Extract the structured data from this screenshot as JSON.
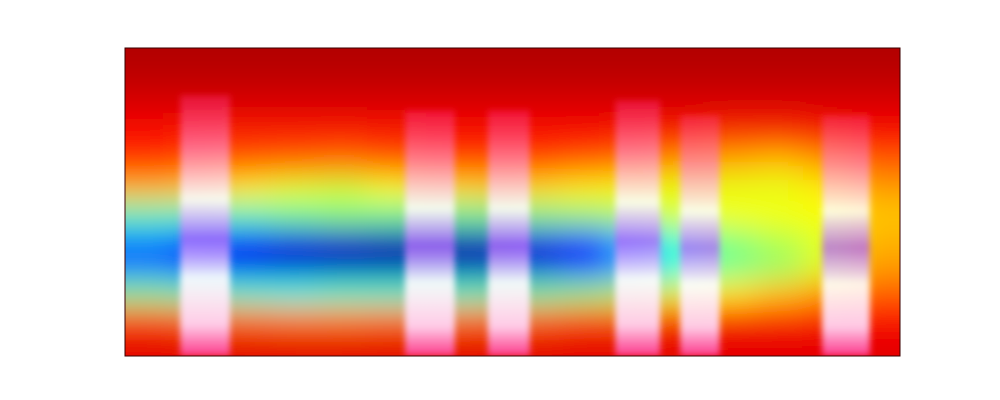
{
  "chart_data": {
    "type": "heatmap",
    "tick_labels": false,
    "xlim": [
      0,
      16
    ],
    "ylim": [
      0,
      12
    ],
    "cells": [
      [
        0.95,
        0.95,
        0.95,
        0.95,
        0.95,
        0.95,
        0.95,
        0.95,
        0.95,
        0.95,
        0.95,
        0.95,
        0.95,
        0.95,
        0.95,
        0.95
      ],
      [
        0.93,
        0.93,
        0.93,
        0.93,
        0.93,
        0.93,
        0.93,
        0.93,
        0.93,
        0.93,
        0.93,
        0.93,
        0.93,
        0.93,
        0.93,
        0.93
      ],
      [
        0.9,
        0.9,
        0.9,
        0.9,
        0.9,
        0.9,
        0.9,
        0.9,
        0.9,
        0.9,
        0.9,
        0.9,
        0.9,
        0.9,
        0.9,
        0.9
      ],
      [
        0.86,
        0.85,
        0.84,
        0.84,
        0.84,
        0.85,
        0.86,
        0.86,
        0.86,
        0.86,
        0.85,
        0.84,
        0.82,
        0.82,
        0.84,
        0.86
      ],
      [
        0.82,
        0.8,
        0.78,
        0.77,
        0.76,
        0.78,
        0.8,
        0.8,
        0.8,
        0.78,
        0.76,
        0.72,
        0.7,
        0.68,
        0.72,
        0.78
      ],
      [
        0.7,
        0.68,
        0.64,
        0.6,
        0.58,
        0.62,
        0.66,
        0.67,
        0.66,
        0.64,
        0.62,
        0.6,
        0.6,
        0.6,
        0.64,
        0.72
      ],
      [
        0.45,
        0.44,
        0.45,
        0.48,
        0.5,
        0.48,
        0.47,
        0.48,
        0.5,
        0.52,
        0.55,
        0.6,
        0.62,
        0.62,
        0.62,
        0.68
      ],
      [
        0.25,
        0.2,
        0.15,
        0.1,
        0.08,
        0.06,
        0.05,
        0.06,
        0.1,
        0.18,
        0.3,
        0.42,
        0.5,
        0.55,
        0.6,
        0.7
      ],
      [
        0.22,
        0.15,
        0.1,
        0.07,
        0.05,
        0.04,
        0.04,
        0.05,
        0.08,
        0.15,
        0.28,
        0.4,
        0.48,
        0.52,
        0.6,
        0.72
      ],
      [
        0.48,
        0.45,
        0.42,
        0.4,
        0.42,
        0.42,
        0.42,
        0.44,
        0.46,
        0.5,
        0.55,
        0.6,
        0.64,
        0.68,
        0.72,
        0.78
      ],
      [
        0.8,
        0.78,
        0.76,
        0.75,
        0.75,
        0.76,
        0.76,
        0.77,
        0.78,
        0.8,
        0.8,
        0.82,
        0.84,
        0.84,
        0.85,
        0.86
      ],
      [
        0.9,
        0.9,
        0.9,
        0.9,
        0.9,
        0.9,
        0.9,
        0.9,
        0.9,
        0.9,
        0.9,
        0.9,
        0.9,
        0.9,
        0.9,
        0.9
      ]
    ],
    "bursts": [
      {
        "start": 1.14,
        "end": 2.17,
        "top": 10.17
      },
      {
        "start": 5.78,
        "end": 6.81,
        "top": 9.58
      },
      {
        "start": 7.49,
        "end": 8.36,
        "top": 9.58
      },
      {
        "start": 10.12,
        "end": 11.05,
        "top": 9.97
      },
      {
        "start": 11.46,
        "end": 12.28,
        "top": 9.39
      },
      {
        "start": 14.39,
        "end": 15.38,
        "top": 9.39
      }
    ]
  }
}
